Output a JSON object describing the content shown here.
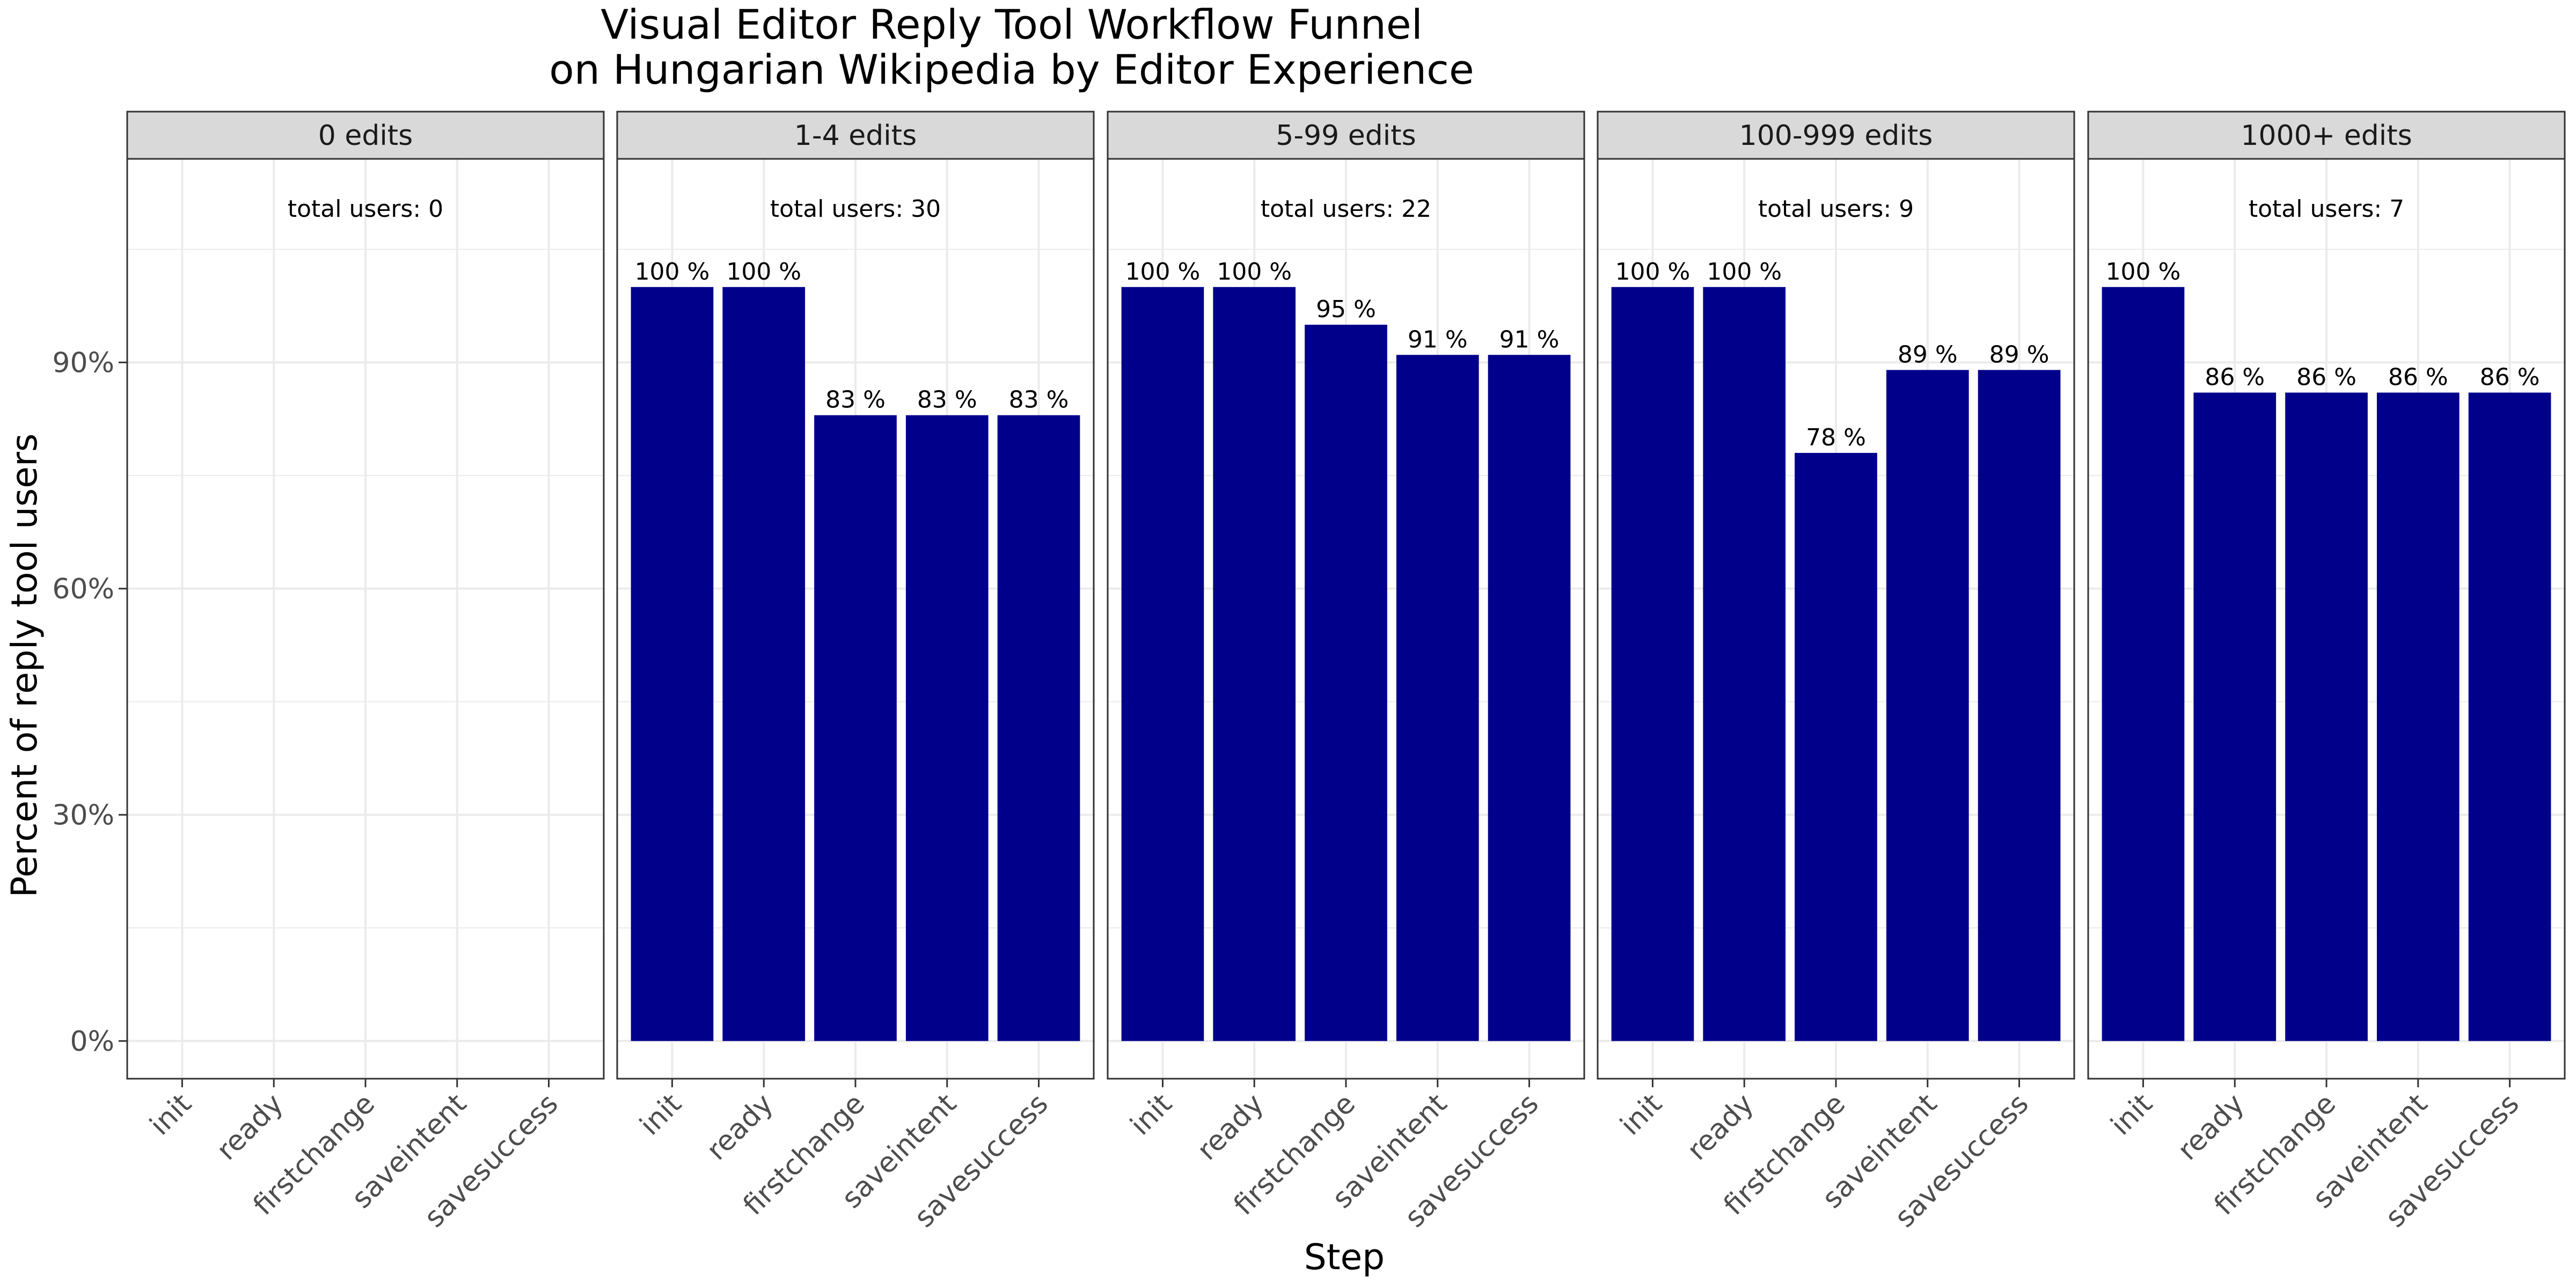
{
  "chart_data": {
    "type": "bar",
    "title_line1": "Visual Editor Reply Tool Workflow Funnel",
    "title_line2": "on Hungarian Wikipedia by Editor Experience",
    "xlabel": "Step",
    "ylabel": "Percent of reply tool users",
    "categories": [
      "init",
      "ready",
      "firstchange",
      "saveintent",
      "savesuccess"
    ],
    "y_ticks": [
      {
        "value": 0,
        "label": "0%"
      },
      {
        "value": 30,
        "label": "30%"
      },
      {
        "value": 60,
        "label": "60%"
      },
      {
        "value": 90,
        "label": "90%"
      }
    ],
    "ylim": [
      -5,
      117
    ],
    "bar_color": "#00008B",
    "panel_background": "#ffffff",
    "strip_background": "#d9d9d9",
    "gridline_color": "#ebebeb",
    "panels": [
      {
        "label": "0 edits",
        "total_label": "total users: 0",
        "values": [
          null,
          null,
          null,
          null,
          null
        ],
        "value_labels": [
          "",
          "",
          "",
          "",
          ""
        ]
      },
      {
        "label": "1-4 edits",
        "total_label": "total users: 30",
        "values": [
          100,
          100,
          83,
          83,
          83
        ],
        "value_labels": [
          "100 %",
          "100 %",
          "83 %",
          "83 %",
          "83 %"
        ]
      },
      {
        "label": "5-99 edits",
        "total_label": "total users: 22",
        "values": [
          100,
          100,
          95,
          91,
          91
        ],
        "value_labels": [
          "100 %",
          "100 %",
          "95 %",
          "91 %",
          "91 %"
        ]
      },
      {
        "label": "100-999 edits",
        "total_label": "total users: 9",
        "values": [
          100,
          100,
          78,
          89,
          89
        ],
        "value_labels": [
          "100 %",
          "100 %",
          "78 %",
          "89 %",
          "89 %"
        ]
      },
      {
        "label": "1000+ edits",
        "total_label": "total users: 7",
        "values": [
          100,
          86,
          86,
          86,
          86
        ],
        "value_labels": [
          "100 %",
          "86 %",
          "86 %",
          "86 %",
          "86 %"
        ]
      }
    ]
  }
}
